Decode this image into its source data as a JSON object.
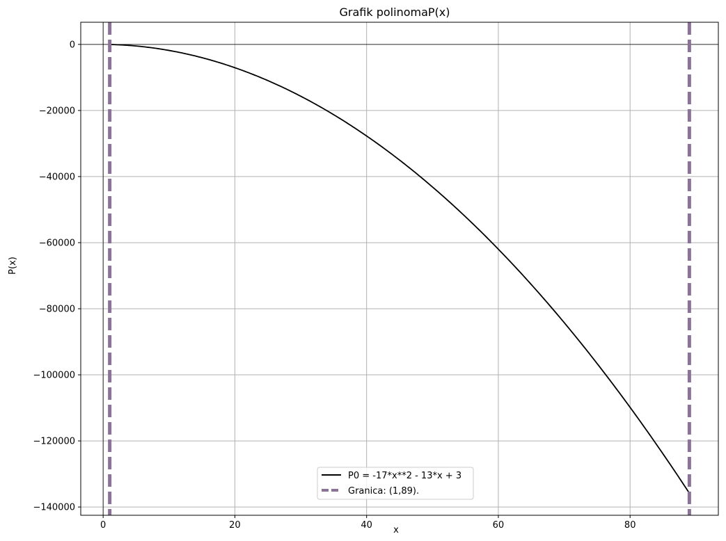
{
  "chart_data": {
    "type": "line",
    "title": "Grafik polinomaP(x)",
    "xlabel": "x",
    "ylabel": "P(x)",
    "xlim": [
      -3.4,
      93.4
    ],
    "ylim": [
      -142500,
      6700
    ],
    "grid": true,
    "legend_position": "bottom-center",
    "x_ticks": [
      0,
      20,
      40,
      60,
      80
    ],
    "y_ticks": [
      0,
      -20000,
      -40000,
      -60000,
      -80000,
      -100000,
      -120000,
      -140000
    ],
    "x_tick_labels": [
      "0",
      "20",
      "40",
      "60",
      "80"
    ],
    "y_tick_labels": [
      "0",
      "−20000",
      "−40000",
      "−60000",
      "−80000",
      "−100000",
      "−120000",
      "−140000"
    ],
    "series": [
      {
        "name": "P0 = -17*x**2 - 13*x + 3",
        "color": "#000000",
        "style": "solid",
        "polynomial": {
          "a2": -17,
          "a1": -13,
          "a0": 3
        },
        "x_range": [
          1,
          89
        ],
        "x": [
          1,
          10,
          20,
          30,
          40,
          50,
          60,
          70,
          80,
          89
        ],
        "y": [
          -27,
          -1827,
          -7057,
          -15687,
          -27717,
          -43147,
          -61977,
          -84207,
          -109837,
          -135811
        ]
      }
    ],
    "vertical_lines": [
      {
        "name": "Granica: (1,89).",
        "x": [
          1,
          89
        ],
        "color": "#8a7396",
        "style": "dashed"
      }
    ],
    "reference_lines": {
      "y_zero": true,
      "x_zero": true
    }
  }
}
